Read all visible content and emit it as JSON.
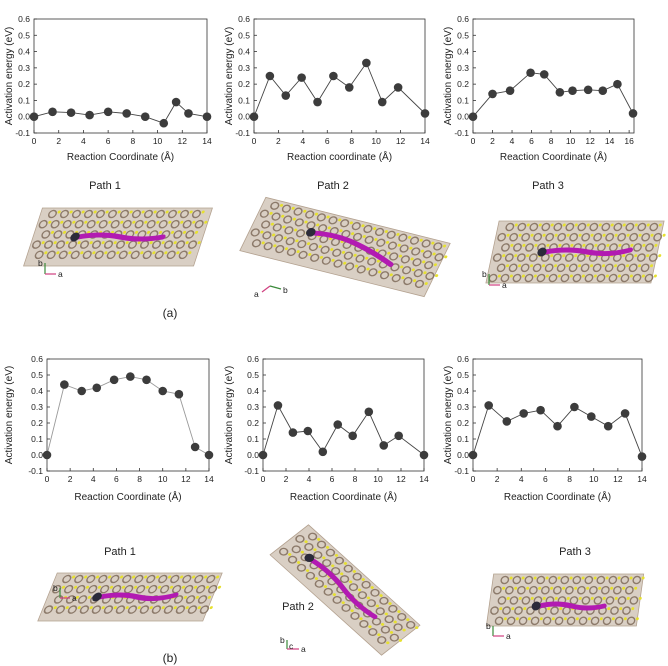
{
  "panel_labels": [
    "(a)",
    "(b)"
  ],
  "path_labels": [
    "Path 1",
    "Path 2",
    "Path 3"
  ],
  "axis_legends": [
    {
      "first": "b",
      "second": "a"
    },
    {
      "first": "a",
      "second": "b"
    },
    {
      "first": "b",
      "second": "a"
    },
    {
      "first": "b",
      "second": "a"
    },
    {
      "first": "b",
      "second": "a"
    },
    {
      "first": "b",
      "second": "a"
    }
  ],
  "axis_legend_b2_extra": "c",
  "chart_data": [
    {
      "type": "line",
      "xlabel": "Reaction Coordinate (Å)",
      "ylabel": "Activation energy (eV)",
      "xlim": [
        0,
        14
      ],
      "ylim": [
        -0.1,
        0.6
      ],
      "xticks": [
        0,
        2,
        4,
        6,
        8,
        10,
        12,
        14
      ],
      "yticks": [
        -0.1,
        0.0,
        0.1,
        0.2,
        0.3,
        0.4,
        0.5,
        0.6
      ],
      "x": [
        0,
        1.5,
        3,
        4.5,
        6,
        7.5,
        9,
        10.5,
        11.5,
        12.5,
        14
      ],
      "y": [
        0.0,
        0.03,
        0.025,
        0.01,
        0.03,
        0.02,
        0.0,
        -0.04,
        0.09,
        0.02,
        0.0
      ]
    },
    {
      "type": "line",
      "xlabel": "Reaction coordinate (Å)",
      "ylabel": "Activation energy (eV)",
      "xlim": [
        0,
        14
      ],
      "ylim": [
        -0.1,
        0.6
      ],
      "xticks": [
        0,
        2,
        4,
        6,
        8,
        10,
        12,
        14
      ],
      "yticks": [
        -0.1,
        0.0,
        0.1,
        0.2,
        0.3,
        0.4,
        0.5,
        0.6
      ],
      "x": [
        0,
        1.3,
        2.6,
        3.9,
        5.2,
        6.5,
        7.8,
        9.2,
        10.5,
        11.8,
        14
      ],
      "y": [
        0.0,
        0.25,
        0.13,
        0.24,
        0.09,
        0.25,
        0.18,
        0.33,
        0.09,
        0.18,
        0.02
      ]
    },
    {
      "type": "line",
      "xlabel": "Reaction Coordinate (Å)",
      "ylabel": "Activation energy (eV)",
      "xlim": [
        0,
        16.5
      ],
      "ylim": [
        -0.1,
        0.6
      ],
      "xticks": [
        0,
        2,
        4,
        6,
        8,
        10,
        12,
        14,
        16
      ],
      "yticks": [
        -0.1,
        0.0,
        0.1,
        0.2,
        0.3,
        0.4,
        0.5,
        0.6
      ],
      "x": [
        0,
        2.0,
        3.8,
        5.9,
        7.3,
        8.9,
        10.2,
        11.8,
        13.3,
        14.8,
        16.4
      ],
      "y": [
        0.0,
        0.14,
        0.16,
        0.27,
        0.26,
        0.15,
        0.16,
        0.165,
        0.16,
        0.2,
        0.02
      ]
    },
    {
      "type": "line",
      "xlabel": "Reaction Coordinate (Å)",
      "ylabel": "Activation energy (eV)",
      "xlim": [
        0,
        14
      ],
      "ylim": [
        -0.1,
        0.6
      ],
      "xticks": [
        0,
        2,
        4,
        6,
        8,
        10,
        12,
        14
      ],
      "yticks": [
        -0.1,
        0.0,
        0.1,
        0.2,
        0.3,
        0.4,
        0.5,
        0.6
      ],
      "x": [
        0,
        1.5,
        3,
        4.3,
        5.8,
        7.2,
        8.6,
        10,
        11.4,
        12.8,
        14
      ],
      "y": [
        0.0,
        0.44,
        0.4,
        0.42,
        0.47,
        0.49,
        0.47,
        0.4,
        0.38,
        0.05,
        0.0
      ]
    },
    {
      "type": "line",
      "xlabel": "Reaction Coordinate (Å)",
      "ylabel": "Activation energy (eV)",
      "xlim": [
        0,
        14
      ],
      "ylim": [
        -0.1,
        0.6
      ],
      "xticks": [
        0,
        2,
        4,
        6,
        8,
        10,
        12,
        14
      ],
      "yticks": [
        -0.1,
        0.0,
        0.1,
        0.2,
        0.3,
        0.4,
        0.5,
        0.6
      ],
      "x": [
        0,
        1.3,
        2.6,
        3.9,
        5.2,
        6.5,
        7.8,
        9.2,
        10.5,
        11.8,
        14
      ],
      "y": [
        0.0,
        0.31,
        0.14,
        0.15,
        0.02,
        0.19,
        0.12,
        0.27,
        0.06,
        0.12,
        0.0
      ]
    },
    {
      "type": "line",
      "xlabel": "Reaction Coordinate (Å)",
      "ylabel": "Activation energy (eV)",
      "xlim": [
        0,
        14
      ],
      "ylim": [
        -0.1,
        0.6
      ],
      "xticks": [
        0,
        2,
        4,
        6,
        8,
        10,
        12,
        14
      ],
      "yticks": [
        -0.1,
        0.0,
        0.1,
        0.2,
        0.3,
        0.4,
        0.5,
        0.6
      ],
      "x": [
        0,
        1.3,
        2.8,
        4.2,
        5.6,
        7.0,
        8.4,
        9.8,
        11.2,
        12.6,
        14
      ],
      "y": [
        0.0,
        0.31,
        0.21,
        0.26,
        0.28,
        0.18,
        0.3,
        0.24,
        0.18,
        0.26,
        -0.01
      ]
    }
  ]
}
